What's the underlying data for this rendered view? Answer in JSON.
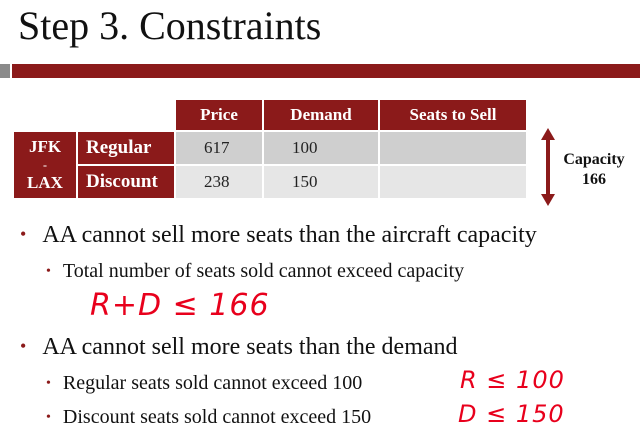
{
  "slide": {
    "title": "Step 3. Constraints",
    "accent_color": "#8b1a1a"
  },
  "table": {
    "headers": [
      "Price",
      "Demand",
      "Seats to Sell"
    ],
    "route_top": "JFK",
    "route_sep": "-",
    "route_bottom": "LAX",
    "rows": [
      {
        "label": "Regular",
        "price": "617",
        "demand": "100",
        "seats": ""
      },
      {
        "label": "Discount",
        "price": "238",
        "demand": "150",
        "seats": ""
      }
    ],
    "capacity_label": "Capacity",
    "capacity_value": "166"
  },
  "bullets": {
    "b1": "AA cannot sell more seats than the aircraft capacity",
    "b1_sub": "Total number of seats sold cannot exceed capacity",
    "b2": "AA cannot sell more seats than the demand",
    "b2_sub1": "Regular seats sold cannot exceed 100",
    "b2_sub2": "Discount seats sold cannot exceed 150"
  },
  "handwriting": {
    "capacity": "R+D ≤ 166",
    "regular": "R ≤ 100",
    "discount": "D ≤ 150",
    "ink_color": "#e8001c"
  }
}
